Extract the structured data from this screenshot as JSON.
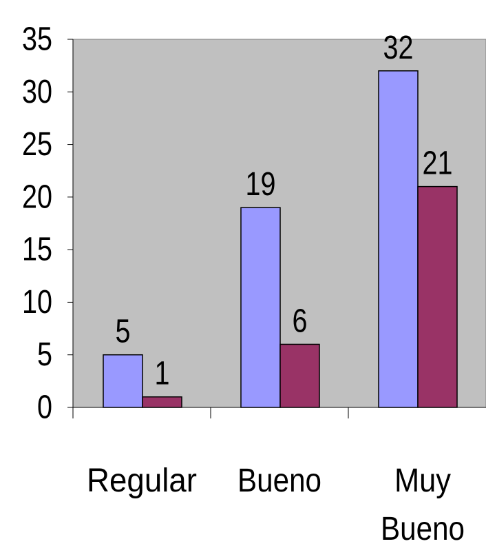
{
  "chart_data": {
    "type": "bar",
    "categories": [
      "Regular",
      "Bueno",
      "Muy Bueno"
    ],
    "category_lines": [
      [
        "Regular"
      ],
      [
        "Bueno"
      ],
      [
        "Muy",
        "Bueno"
      ]
    ],
    "series": [
      {
        "values": [
          5,
          19,
          32
        ],
        "color": "#9999ff"
      },
      {
        "values": [
          1,
          6,
          21
        ],
        "color": "#993366"
      }
    ],
    "ylim": [
      0,
      35
    ],
    "yticks": [
      "0",
      "5",
      "10",
      "15",
      "20",
      "25",
      "30",
      "35"
    ],
    "plot_background": "#c0c0c0",
    "grid": false,
    "legend": "none"
  }
}
